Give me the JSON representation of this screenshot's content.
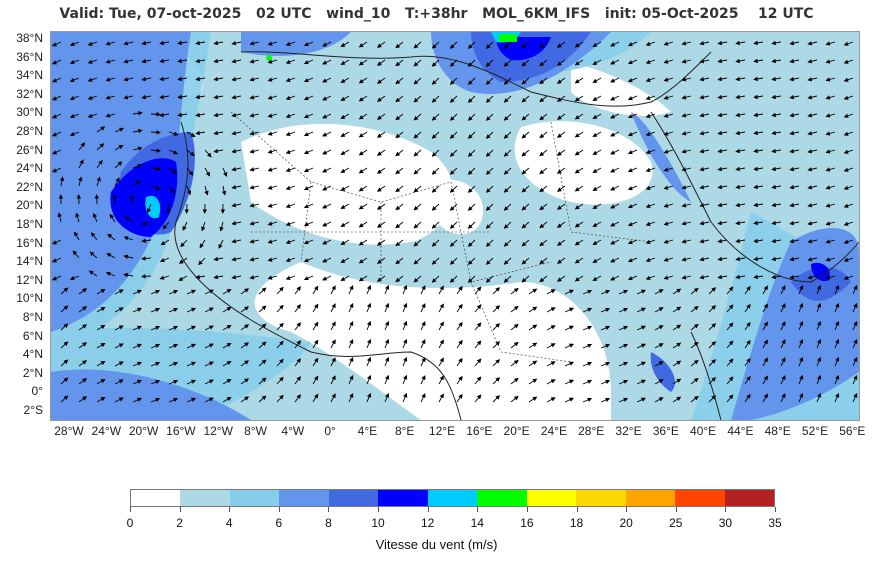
{
  "title": "Valid: Tue, 07-oct-2025   02 UTC   wind_10   T:+38hr   MOL_6KM_IFS   init: 05-Oct-2025    12 UTC",
  "lat_labels": [
    "38°N",
    "36°N",
    "34°N",
    "32°N",
    "30°N",
    "28°N",
    "26°N",
    "24°N",
    "22°N",
    "20°N",
    "18°N",
    "16°N",
    "14°N",
    "12°N",
    "10°N",
    "8°N",
    "6°N",
    "4°N",
    "2°N",
    "0°",
    "2°S"
  ],
  "lon_labels": [
    "28°W",
    "24°W",
    "20°W",
    "16°W",
    "12°W",
    "8°W",
    "4°W",
    "0°",
    "4°E",
    "8°E",
    "12°E",
    "16°E",
    "20°E",
    "24°E",
    "28°E",
    "32°E",
    "36°E",
    "40°E",
    "44°E",
    "48°E",
    "52°E",
    "56°E"
  ],
  "colorbar": {
    "title": "Vitesse du vent (m/s)",
    "ticks": [
      "0",
      "2",
      "4",
      "6",
      "8",
      "10",
      "12",
      "14",
      "16",
      "18",
      "20",
      "25",
      "30",
      "35"
    ],
    "colors": [
      "#ffffff",
      "#add8e6",
      "#87ceeb",
      "#6495ed",
      "#4169e1",
      "#0000ff",
      "#00ccff",
      "#00ff00",
      "#ffff00",
      "#ffd700",
      "#ffa500",
      "#ff4500",
      "#b22222"
    ]
  }
}
